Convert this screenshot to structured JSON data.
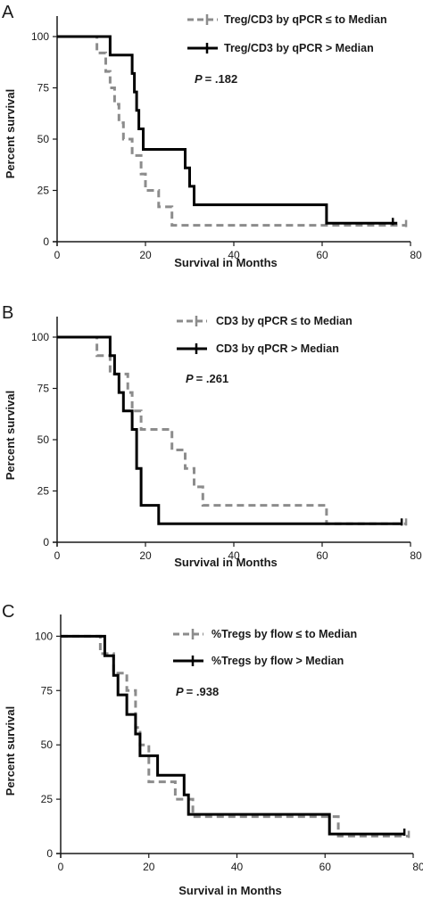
{
  "chart_data": [
    {
      "type": "line",
      "panel": "A",
      "xlabel": "Survival in Months",
      "ylabel": "Percent survival",
      "xlim": [
        0,
        80
      ],
      "ylim": [
        0,
        110
      ],
      "x_ticks": [
        "0",
        "20",
        "40",
        "60",
        "80"
      ],
      "y_ticks": [
        "0",
        "25",
        "50",
        "75",
        "100"
      ],
      "p_prefix": "P",
      "p_value": "= .182",
      "legend_placement": "top-right",
      "series": [
        {
          "name": "Treg/CD3 by qPCR ≤ to Median",
          "style": "dashed",
          "color": "#8c8c8c",
          "points": [
            [
              0,
              100
            ],
            [
              9,
              100
            ],
            [
              9,
              92
            ],
            [
              11,
              92
            ],
            [
              11,
              83
            ],
            [
              12,
              83
            ],
            [
              12,
              75
            ],
            [
              13,
              75
            ],
            [
              13,
              67
            ],
            [
              14,
              67
            ],
            [
              14,
              58
            ],
            [
              15,
              58
            ],
            [
              15,
              50
            ],
            [
              17,
              50
            ],
            [
              17,
              42
            ],
            [
              19,
              42
            ],
            [
              19,
              33
            ],
            [
              20,
              33
            ],
            [
              20,
              25
            ],
            [
              23,
              25
            ],
            [
              23,
              17
            ],
            [
              26,
              17
            ],
            [
              26,
              8
            ],
            [
              79,
              8
            ]
          ],
          "censor_x": [
            79
          ]
        },
        {
          "name": "Treg/CD3 by qPCR > Median",
          "style": "solid",
          "color": "#000000",
          "points": [
            [
              0,
              100
            ],
            [
              12,
              100
            ],
            [
              12,
              91
            ],
            [
              17,
              91
            ],
            [
              17,
              82
            ],
            [
              17.5,
              82
            ],
            [
              17.5,
              73
            ],
            [
              18,
              73
            ],
            [
              18,
              64
            ],
            [
              18.5,
              64
            ],
            [
              18.5,
              55
            ],
            [
              19.5,
              55
            ],
            [
              19.5,
              45
            ],
            [
              29,
              45
            ],
            [
              29,
              36
            ],
            [
              30,
              36
            ],
            [
              30,
              27
            ],
            [
              31,
              27
            ],
            [
              31,
              18
            ],
            [
              61,
              18
            ],
            [
              61,
              9
            ],
            [
              77,
              9
            ]
          ],
          "censor_x": [
            76
          ]
        }
      ]
    },
    {
      "type": "line",
      "panel": "B",
      "xlabel": "Survival in Months",
      "ylabel": "Percent survival",
      "xlim": [
        0,
        80
      ],
      "ylim": [
        0,
        110
      ],
      "x_ticks": [
        "0",
        "20",
        "40",
        "60",
        "80"
      ],
      "y_ticks": [
        "0",
        "25",
        "50",
        "75",
        "100"
      ],
      "p_prefix": "P",
      "p_value": "= .261",
      "legend_placement": "top-right",
      "series": [
        {
          "name": "CD3 by qPCR ≤ to Median",
          "style": "dashed",
          "color": "#8c8c8c",
          "points": [
            [
              0,
              100
            ],
            [
              9,
              100
            ],
            [
              9,
              91
            ],
            [
              12,
              91
            ],
            [
              12,
              82
            ],
            [
              16,
              82
            ],
            [
              16,
              73
            ],
            [
              17,
              73
            ],
            [
              17,
              64
            ],
            [
              19,
              64
            ],
            [
              19,
              55
            ],
            [
              26,
              55
            ],
            [
              26,
              45
            ],
            [
              29,
              45
            ],
            [
              29,
              36
            ],
            [
              31,
              36
            ],
            [
              31,
              27
            ],
            [
              33,
              27
            ],
            [
              33,
              18
            ],
            [
              61,
              18
            ],
            [
              61,
              9
            ],
            [
              79,
              9
            ]
          ],
          "censor_x": [
            79
          ]
        },
        {
          "name": "CD3 by qPCR > Median",
          "style": "solid",
          "color": "#000000",
          "points": [
            [
              0,
              100
            ],
            [
              12,
              100
            ],
            [
              12,
              91
            ],
            [
              13,
              91
            ],
            [
              13,
              82
            ],
            [
              14,
              82
            ],
            [
              14,
              73
            ],
            [
              15,
              73
            ],
            [
              15,
              64
            ],
            [
              17,
              64
            ],
            [
              17,
              55
            ],
            [
              18,
              55
            ],
            [
              18,
              36
            ],
            [
              19,
              36
            ],
            [
              19,
              18
            ],
            [
              23,
              18
            ],
            [
              23,
              9
            ],
            [
              78,
              9
            ]
          ],
          "censor_x": [
            78
          ]
        }
      ]
    },
    {
      "type": "line",
      "panel": "C",
      "xlabel": "Survival in Months",
      "ylabel": "Percent survival",
      "xlim": [
        0,
        80
      ],
      "ylim": [
        0,
        110
      ],
      "x_ticks": [
        "0",
        "20",
        "40",
        "60",
        "80"
      ],
      "y_ticks": [
        "0",
        "25",
        "50",
        "75",
        "100"
      ],
      "p_prefix": "P",
      "p_value": "= .938",
      "legend_placement": "top-right",
      "series": [
        {
          "name": "%Tregs by flow ≤ to Median",
          "style": "dashed",
          "color": "#8c8c8c",
          "points": [
            [
              0,
              100
            ],
            [
              9,
              100
            ],
            [
              9,
              92
            ],
            [
              12,
              92
            ],
            [
              12,
              83
            ],
            [
              15,
              83
            ],
            [
              15,
              75
            ],
            [
              17,
              75
            ],
            [
              17,
              58
            ],
            [
              18,
              58
            ],
            [
              18,
              50
            ],
            [
              20,
              50
            ],
            [
              20,
              33
            ],
            [
              26,
              33
            ],
            [
              26,
              25
            ],
            [
              30,
              25
            ],
            [
              30,
              17
            ],
            [
              63,
              17
            ],
            [
              63,
              8
            ],
            [
              79,
              8
            ]
          ],
          "censor_x": [
            79
          ]
        },
        {
          "name": "%Tregs by flow > Median",
          "style": "solid",
          "color": "#000000",
          "points": [
            [
              0,
              100
            ],
            [
              10,
              100
            ],
            [
              10,
              91
            ],
            [
              12,
              91
            ],
            [
              12,
              82
            ],
            [
              13,
              82
            ],
            [
              13,
              73
            ],
            [
              15,
              73
            ],
            [
              15,
              64
            ],
            [
              17,
              64
            ],
            [
              17,
              55
            ],
            [
              18,
              55
            ],
            [
              18,
              45
            ],
            [
              22,
              45
            ],
            [
              22,
              36
            ],
            [
              28,
              36
            ],
            [
              28,
              27
            ],
            [
              29,
              27
            ],
            [
              29,
              18
            ],
            [
              61,
              18
            ],
            [
              61,
              9
            ],
            [
              78,
              9
            ]
          ],
          "censor_x": [
            78
          ]
        }
      ]
    }
  ]
}
